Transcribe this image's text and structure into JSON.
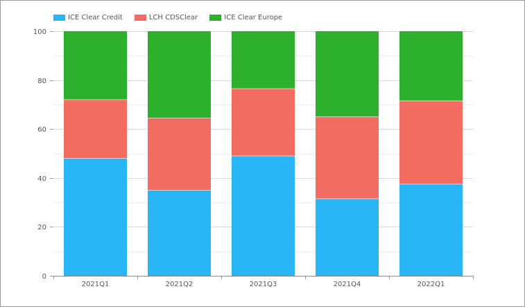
{
  "chart_data": {
    "type": "bar",
    "stacked": true,
    "categories": [
      "2021Q1",
      "2021Q2",
      "2021Q3",
      "2021Q4",
      "2022Q1"
    ],
    "series": [
      {
        "name": "ICE Clear Credit",
        "color": "#29b6f6",
        "values": [
          48,
          35,
          49,
          31.5,
          37.5
        ]
      },
      {
        "name": "LCH CDSClear",
        "color": "#f26c62",
        "values": [
          24,
          29.5,
          27.5,
          33.5,
          34
        ]
      },
      {
        "name": "ICE Clear Europe",
        "color": "#2db02d",
        "values": [
          28,
          35.5,
          23.5,
          35,
          28.5
        ]
      }
    ],
    "ylim": [
      0,
      100
    ],
    "yticks": [
      0,
      20,
      40,
      60,
      80,
      100
    ],
    "grid": true,
    "legend_position": "top-left",
    "title": "",
    "xlabel": "",
    "ylabel": ""
  }
}
